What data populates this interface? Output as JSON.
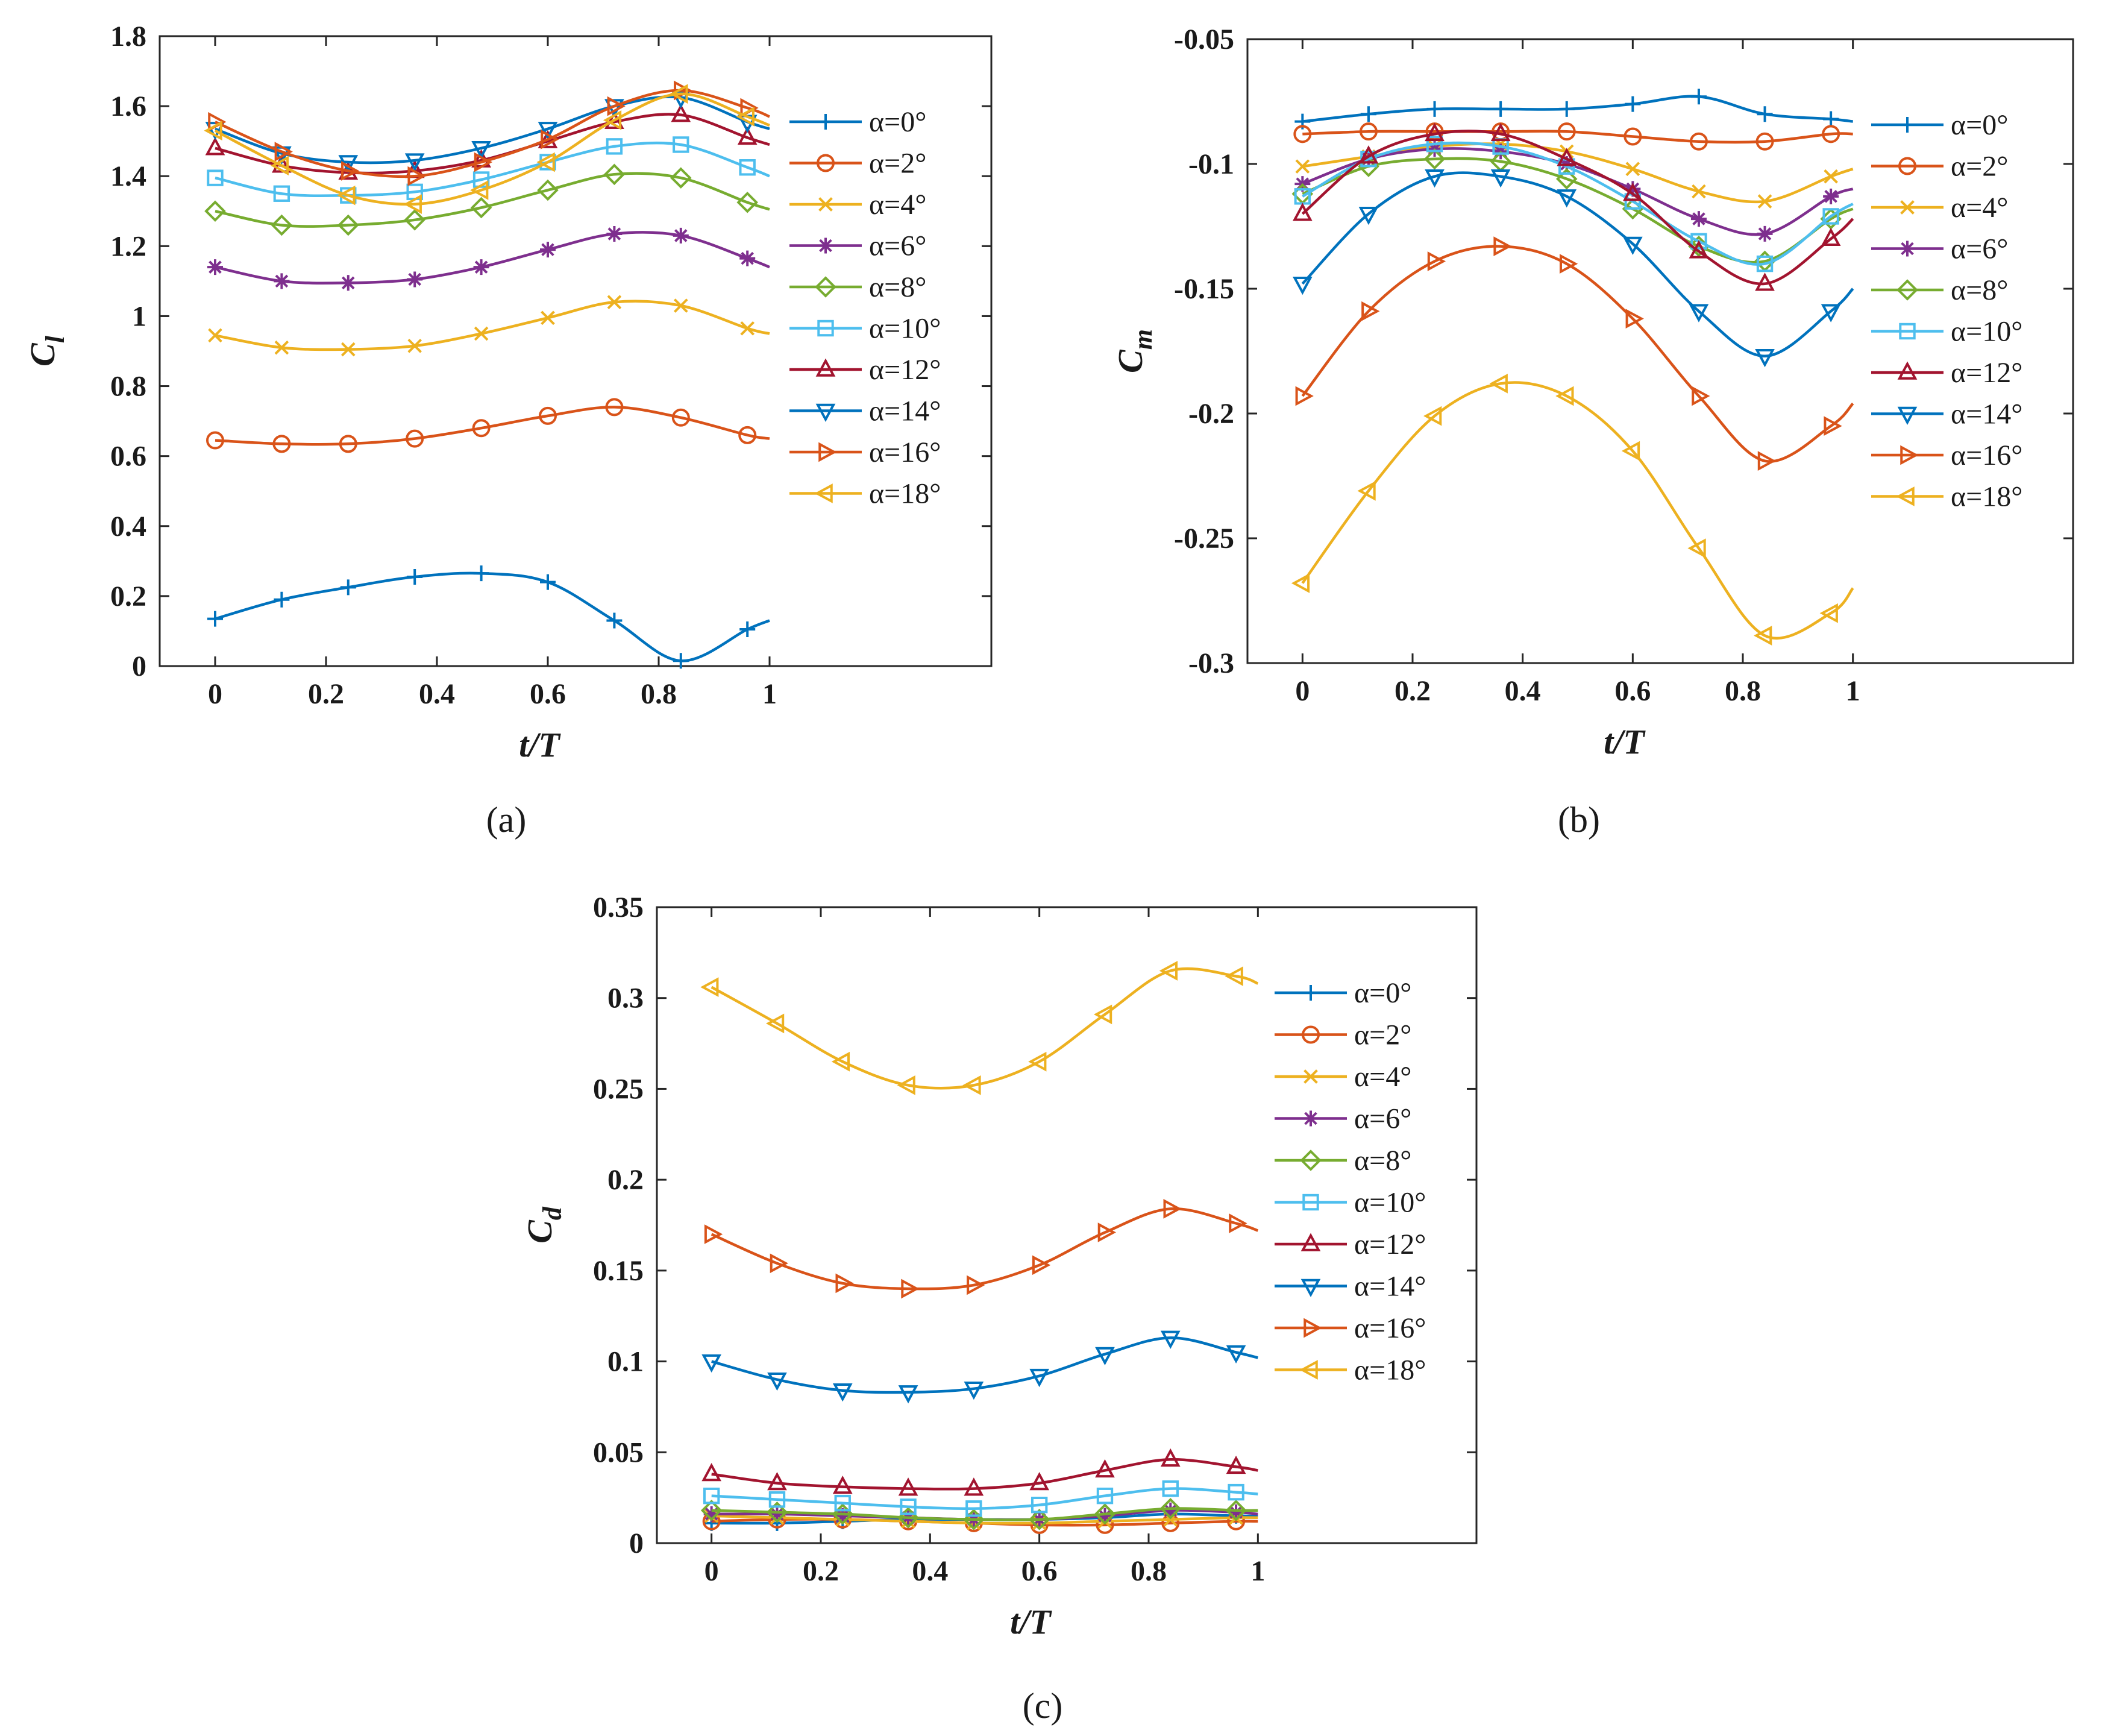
{
  "figure": {
    "panel_labels": [
      "(a)",
      "(b)",
      "(c)"
    ],
    "series_colors": [
      "#0072BD",
      "#D95319",
      "#EDB120",
      "#7E2F8E",
      "#77AC30",
      "#4DBEEE",
      "#A2142F",
      "#0072BD",
      "#D95319",
      "#EDB120"
    ],
    "marker_names": [
      "plus",
      "circle",
      "x",
      "asterisk",
      "diamond",
      "square",
      "triangle-up",
      "triangle-down",
      "triangle-right",
      "triangle-left"
    ]
  },
  "chart_data": [
    {
      "type": "line",
      "panel": "(a)",
      "xlabel": "t/T",
      "ylabel": "C",
      "ylabel_sub": "l",
      "xlim": [
        -0.1,
        1.4
      ],
      "ylim": [
        0,
        1.8
      ],
      "xticks": [
        0,
        0.2,
        0.4,
        0.6,
        0.8,
        1
      ],
      "xtick_labels": [
        "0",
        "0.2",
        "0.4",
        "0.6",
        "0.8",
        "1"
      ],
      "yticks": [
        0,
        0.2,
        0.4,
        0.6,
        0.8,
        1.0,
        1.2,
        1.4,
        1.6,
        1.8
      ],
      "ytick_labels": [
        "0",
        "0.2",
        "0.4",
        "0.6",
        "0.8",
        "1",
        "1.2",
        "1.4",
        "1.6",
        "1.8"
      ],
      "x": [
        0,
        0.12,
        0.24,
        0.36,
        0.48,
        0.6,
        0.72,
        0.84,
        0.96,
        1.0
      ],
      "legend_position": "right",
      "series": [
        {
          "name": "α=0°",
          "values": [
            0.135,
            0.19,
            0.225,
            0.255,
            0.265,
            0.24,
            0.13,
            0.015,
            0.105,
            0.13
          ]
        },
        {
          "name": "α=2°",
          "values": [
            0.645,
            0.635,
            0.635,
            0.65,
            0.68,
            0.715,
            0.74,
            0.71,
            0.66,
            0.65
          ]
        },
        {
          "name": "α=4°",
          "values": [
            0.945,
            0.91,
            0.905,
            0.915,
            0.95,
            0.995,
            1.04,
            1.03,
            0.965,
            0.95
          ]
        },
        {
          "name": "α=6°",
          "values": [
            1.14,
            1.1,
            1.095,
            1.105,
            1.14,
            1.19,
            1.235,
            1.23,
            1.165,
            1.14
          ]
        },
        {
          "name": "α=8°",
          "values": [
            1.3,
            1.26,
            1.26,
            1.275,
            1.31,
            1.36,
            1.405,
            1.395,
            1.325,
            1.305
          ]
        },
        {
          "name": "α=10°",
          "values": [
            1.395,
            1.35,
            1.345,
            1.355,
            1.39,
            1.44,
            1.485,
            1.49,
            1.425,
            1.4
          ]
        },
        {
          "name": "α=12°",
          "values": [
            1.48,
            1.43,
            1.41,
            1.415,
            1.445,
            1.5,
            1.555,
            1.575,
            1.51,
            1.49
          ]
        },
        {
          "name": "α=14°",
          "values": [
            1.535,
            1.465,
            1.44,
            1.445,
            1.48,
            1.535,
            1.6,
            1.625,
            1.555,
            1.535
          ]
        },
        {
          "name": "α=16°",
          "values": [
            1.555,
            1.47,
            1.415,
            1.4,
            1.44,
            1.505,
            1.6,
            1.645,
            1.595,
            1.57
          ]
        },
        {
          "name": "α=18°",
          "values": [
            1.53,
            1.43,
            1.345,
            1.32,
            1.36,
            1.44,
            1.56,
            1.635,
            1.57,
            1.545
          ]
        }
      ]
    },
    {
      "type": "line",
      "panel": "(b)",
      "xlabel": "t/T",
      "ylabel": "C",
      "ylabel_sub": "m",
      "xlim": [
        -0.1,
        1.4
      ],
      "ylim": [
        -0.3,
        -0.05
      ],
      "xticks": [
        0,
        0.2,
        0.4,
        0.6,
        0.8,
        1
      ],
      "xtick_labels": [
        "0",
        "0.2",
        "0.4",
        "0.6",
        "0.8",
        "1"
      ],
      "yticks": [
        -0.3,
        -0.25,
        -0.2,
        -0.15,
        -0.1,
        -0.05
      ],
      "ytick_labels": [
        "-0.3",
        "-0.25",
        "-0.2",
        "-0.15",
        "-0.1",
        "-0.05"
      ],
      "x": [
        0,
        0.12,
        0.24,
        0.36,
        0.48,
        0.6,
        0.72,
        0.84,
        0.96,
        1.0
      ],
      "legend_position": "right",
      "series": [
        {
          "name": "α=0°",
          "values": [
            -0.083,
            -0.08,
            -0.078,
            -0.078,
            -0.078,
            -0.076,
            -0.073,
            -0.08,
            -0.082,
            -0.083
          ]
        },
        {
          "name": "α=2°",
          "values": [
            -0.088,
            -0.087,
            -0.087,
            -0.087,
            -0.087,
            -0.089,
            -0.091,
            -0.091,
            -0.088,
            -0.088
          ]
        },
        {
          "name": "α=4°",
          "values": [
            -0.101,
            -0.097,
            -0.093,
            -0.092,
            -0.095,
            -0.102,
            -0.111,
            -0.115,
            -0.105,
            -0.102
          ]
        },
        {
          "name": "α=6°",
          "values": [
            -0.108,
            -0.098,
            -0.094,
            -0.095,
            -0.1,
            -0.11,
            -0.122,
            -0.128,
            -0.113,
            -0.11
          ]
        },
        {
          "name": "α=8°",
          "values": [
            -0.112,
            -0.101,
            -0.098,
            -0.099,
            -0.106,
            -0.118,
            -0.133,
            -0.139,
            -0.122,
            -0.118
          ]
        },
        {
          "name": "α=10°",
          "values": [
            -0.113,
            -0.098,
            -0.092,
            -0.093,
            -0.101,
            -0.115,
            -0.131,
            -0.14,
            -0.121,
            -0.116
          ]
        },
        {
          "name": "α=12°",
          "values": [
            -0.12,
            -0.097,
            -0.088,
            -0.088,
            -0.098,
            -0.112,
            -0.135,
            -0.148,
            -0.13,
            -0.122
          ]
        },
        {
          "name": "α=14°",
          "values": [
            -0.148,
            -0.12,
            -0.105,
            -0.105,
            -0.113,
            -0.132,
            -0.159,
            -0.177,
            -0.159,
            -0.15
          ]
        },
        {
          "name": "α=16°",
          "values": [
            -0.193,
            -0.159,
            -0.139,
            -0.133,
            -0.14,
            -0.162,
            -0.193,
            -0.219,
            -0.205,
            -0.196
          ]
        },
        {
          "name": "α=18°",
          "values": [
            -0.268,
            -0.231,
            -0.201,
            -0.188,
            -0.193,
            -0.215,
            -0.254,
            -0.289,
            -0.28,
            -0.27
          ]
        }
      ]
    },
    {
      "type": "line",
      "panel": "(c)",
      "xlabel": "t/T",
      "ylabel": "C",
      "ylabel_sub": "d",
      "xlim": [
        -0.1,
        1.4
      ],
      "ylim": [
        0,
        0.35
      ],
      "xticks": [
        0,
        0.2,
        0.4,
        0.6,
        0.8,
        1
      ],
      "xtick_labels": [
        "0",
        "0.2",
        "0.4",
        "0.6",
        "0.8",
        "1"
      ],
      "yticks": [
        0,
        0.05,
        0.1,
        0.15,
        0.2,
        0.25,
        0.3,
        0.35
      ],
      "ytick_labels": [
        "0",
        "0.05",
        "0.1",
        "0.15",
        "0.2",
        "0.25",
        "0.3",
        "0.35"
      ],
      "x": [
        0,
        0.12,
        0.24,
        0.36,
        0.48,
        0.6,
        0.72,
        0.84,
        0.96,
        1.0
      ],
      "legend_position": "right",
      "series": [
        {
          "name": "α=0°",
          "values": [
            0.011,
            0.011,
            0.012,
            0.013,
            0.013,
            0.013,
            0.014,
            0.016,
            0.015,
            0.015
          ]
        },
        {
          "name": "α=2°",
          "values": [
            0.012,
            0.013,
            0.013,
            0.012,
            0.011,
            0.01,
            0.01,
            0.011,
            0.012,
            0.012
          ]
        },
        {
          "name": "α=4°",
          "values": [
            0.015,
            0.014,
            0.013,
            0.012,
            0.011,
            0.011,
            0.012,
            0.013,
            0.014,
            0.014
          ]
        },
        {
          "name": "α=6°",
          "values": [
            0.016,
            0.016,
            0.015,
            0.014,
            0.013,
            0.013,
            0.015,
            0.018,
            0.017,
            0.016
          ]
        },
        {
          "name": "α=8°",
          "values": [
            0.018,
            0.017,
            0.016,
            0.014,
            0.013,
            0.013,
            0.016,
            0.019,
            0.018,
            0.018
          ]
        },
        {
          "name": "α=10°",
          "values": [
            0.026,
            0.024,
            0.022,
            0.02,
            0.019,
            0.021,
            0.026,
            0.03,
            0.028,
            0.027
          ]
        },
        {
          "name": "α=12°",
          "values": [
            0.038,
            0.033,
            0.031,
            0.03,
            0.03,
            0.033,
            0.04,
            0.046,
            0.042,
            0.04
          ]
        },
        {
          "name": "α=14°",
          "values": [
            0.1,
            0.09,
            0.084,
            0.083,
            0.085,
            0.092,
            0.104,
            0.113,
            0.105,
            0.102
          ]
        },
        {
          "name": "α=16°",
          "values": [
            0.17,
            0.154,
            0.143,
            0.14,
            0.142,
            0.153,
            0.171,
            0.184,
            0.176,
            0.172
          ]
        },
        {
          "name": "α=18°",
          "values": [
            0.306,
            0.286,
            0.265,
            0.252,
            0.252,
            0.265,
            0.291,
            0.315,
            0.312,
            0.308
          ]
        }
      ]
    }
  ]
}
